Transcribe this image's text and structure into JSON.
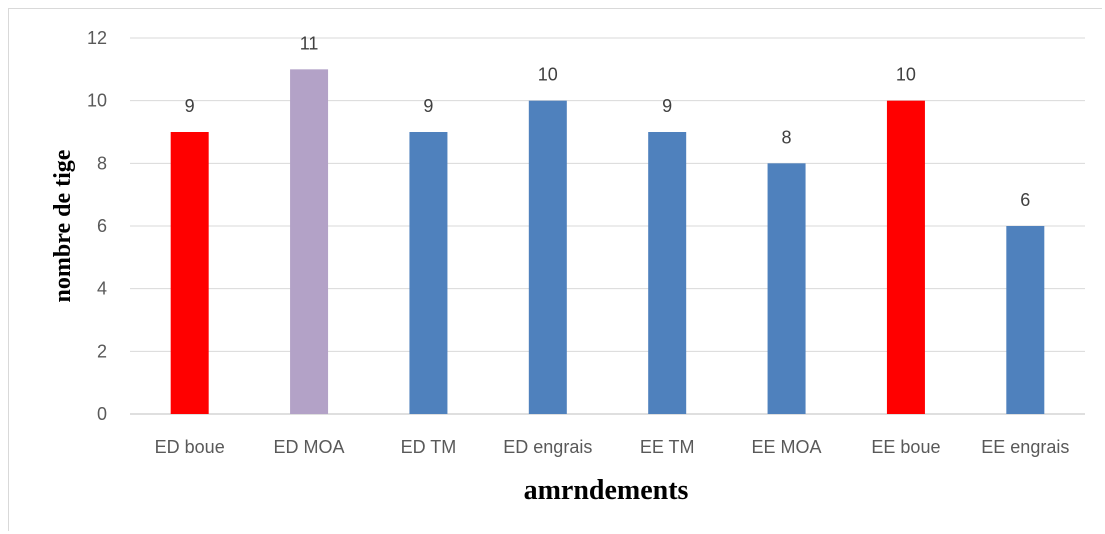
{
  "chart_data": {
    "type": "bar",
    "title": "",
    "xlabel": "amrndements",
    "ylabel": "nombre de tige",
    "categories": [
      "ED boue",
      "ED MOA",
      "ED TM",
      "ED engrais",
      "EE TM",
      "EE MOA",
      "EE boue",
      "EE engrais"
    ],
    "values": [
      9,
      11,
      9,
      10,
      9,
      8,
      10,
      6
    ],
    "bar_colors": [
      "#ff0000",
      "#b3a2c7",
      "#4f81bd",
      "#4f81bd",
      "#4f81bd",
      "#4f81bd",
      "#ff0000",
      "#4f81bd"
    ],
    "ylim": [
      0,
      12
    ],
    "yticks": [
      0,
      2,
      4,
      6,
      8,
      10,
      12
    ],
    "grid": true,
    "legend": "none",
    "data_labels": true
  }
}
